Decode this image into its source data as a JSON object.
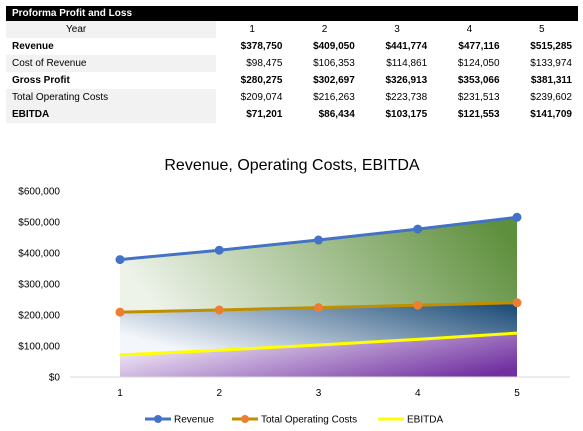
{
  "table": {
    "title": "Proforma Profit and Loss",
    "header_label": "Year",
    "years": [
      "1",
      "2",
      "3",
      "4",
      "5"
    ],
    "rows": [
      {
        "label": "Revenue",
        "bold": true,
        "values": [
          "$378,750",
          "$409,050",
          "$441,774",
          "$477,116",
          "$515,285"
        ]
      },
      {
        "label": "Cost of Revenue",
        "bold": false,
        "values": [
          "$98,475",
          "$106,353",
          "$114,861",
          "$124,050",
          "$133,974"
        ]
      },
      {
        "label": "Gross Profit",
        "bold": true,
        "values": [
          "$280,275",
          "$302,697",
          "$326,913",
          "$353,066",
          "$381,311"
        ]
      },
      {
        "label": "Total Operating Costs",
        "bold": false,
        "values": [
          "$209,074",
          "$216,263",
          "$223,738",
          "$231,513",
          "$239,602"
        ]
      },
      {
        "label": "EBITDA",
        "bold": true,
        "values": [
          "$71,201",
          "$86,434",
          "$103,175",
          "$121,553",
          "$141,709"
        ]
      }
    ]
  },
  "chart_data": {
    "type": "area",
    "title": "Revenue, Operating Costs, EBITDA",
    "categories": [
      "1",
      "2",
      "3",
      "4",
      "5"
    ],
    "ylim": [
      0,
      600000
    ],
    "yticks": [
      0,
      100000,
      200000,
      300000,
      400000,
      500000,
      600000
    ],
    "ytick_labels": [
      "$0",
      "$100,000",
      "$200,000",
      "$300,000",
      "$400,000",
      "$500,000",
      "$600,000"
    ],
    "grid": false,
    "legend_position": "bottom",
    "series": [
      {
        "name": "Revenue",
        "values": [
          378750,
          409050,
          441774,
          477116,
          515285
        ],
        "color": "#4472c4",
        "marker": true,
        "fill": "green-gradient"
      },
      {
        "name": "Total Operating Costs",
        "values": [
          209074,
          216263,
          223738,
          231513,
          239602
        ],
        "color": "#ed7d31",
        "line_color": "#bf8f00",
        "marker": true,
        "fill": "blue-gradient"
      },
      {
        "name": "EBITDA",
        "values": [
          71201,
          86434,
          103175,
          121553,
          141709
        ],
        "color": "#ffff00",
        "marker": false,
        "fill": "purple-gradient"
      }
    ]
  }
}
